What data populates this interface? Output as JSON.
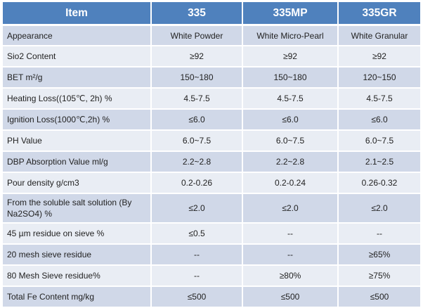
{
  "table": {
    "headers": [
      "Item",
      "335",
      "335MP",
      "335GR"
    ],
    "rows": [
      [
        "Appearance",
        "White Powder",
        "White Micro-Pearl",
        "White Granular"
      ],
      [
        "Sio2 Content",
        "≥92",
        "≥92",
        "≥92"
      ],
      [
        "BET m²/g",
        "150~180",
        "150~180",
        "120~150"
      ],
      [
        "Heating Loss((105℃, 2h)  %",
        "4.5-7.5",
        "4.5-7.5",
        "4.5-7.5"
      ],
      [
        "Ignition Loss(1000℃,2h)  %",
        "≤6.0",
        "≤6.0",
        "≤6.0"
      ],
      [
        "PH Value",
        "6.0~7.5",
        "6.0~7.5",
        "6.0~7.5"
      ],
      [
        "DBP Absorption Value ml/g",
        "2.2~2.8",
        "2.2~2.8",
        "2.1~2.5"
      ],
      [
        "Pour density g/cm3",
        "0.2-0.26",
        "0.2-0.24",
        "0.26-0.32"
      ],
      [
        "From the soluble salt solution (By Na2SO4) %",
        "≤2.0",
        "≤2.0",
        "≤2.0"
      ],
      [
        "45 µm residue on sieve  %",
        "≤0.5",
        "--",
        "--"
      ],
      [
        "20 mesh sieve residue",
        "--",
        "--",
        "≥65%"
      ],
      [
        "80 Mesh Sieve residue%",
        "--",
        "≥80%",
        "≥75%"
      ],
      [
        "Total Fe Content mg/kg",
        "≤500",
        "≤500",
        "≤500"
      ]
    ]
  },
  "colors": {
    "header_bg": "#4f81bd",
    "header_text": "#ffffff",
    "row_odd_bg": "#d0d8e8",
    "row_even_bg": "#e9edf4",
    "text": "#222222"
  }
}
